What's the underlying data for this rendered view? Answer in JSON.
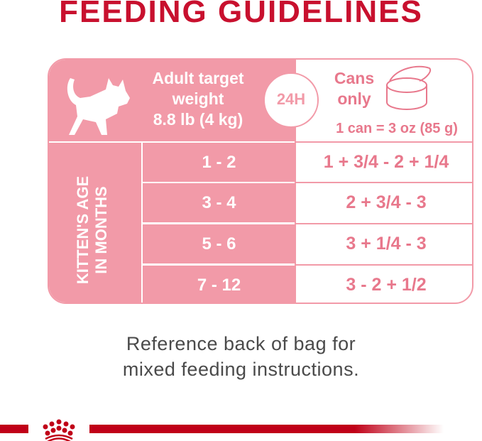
{
  "title": "FEEDING GUIDELINES",
  "header": {
    "weight_line1": "Adult target",
    "weight_line2": "weight",
    "weight_line3": "8.8 lb (4 kg)",
    "period": "24H",
    "cans_line1": "Cans",
    "cans_line2": "only",
    "can_size": "1 can = 3 oz (85 g)"
  },
  "side_label_line1": "KITTEN'S AGE",
  "side_label_line2": "IN MONTHS",
  "rows": [
    {
      "age": "1 - 2",
      "cans": "1 + 3/4 - 2 + 1/4"
    },
    {
      "age": "3 - 4",
      "cans": "2 + 3/4 - 3"
    },
    {
      "age": "5 - 6",
      "cans": "3 + 1/4 - 3"
    },
    {
      "age": "7 - 12",
      "cans": "3 - 2 + 1/2"
    }
  ],
  "footer_line1": "Reference back of bag for",
  "footer_line2": "mixed feeding instructions.",
  "logo": "Royal Canin crown",
  "colors": {
    "brand_red": "#c8102e",
    "pink": "#f29aa8",
    "value_pink": "#e8788c"
  }
}
